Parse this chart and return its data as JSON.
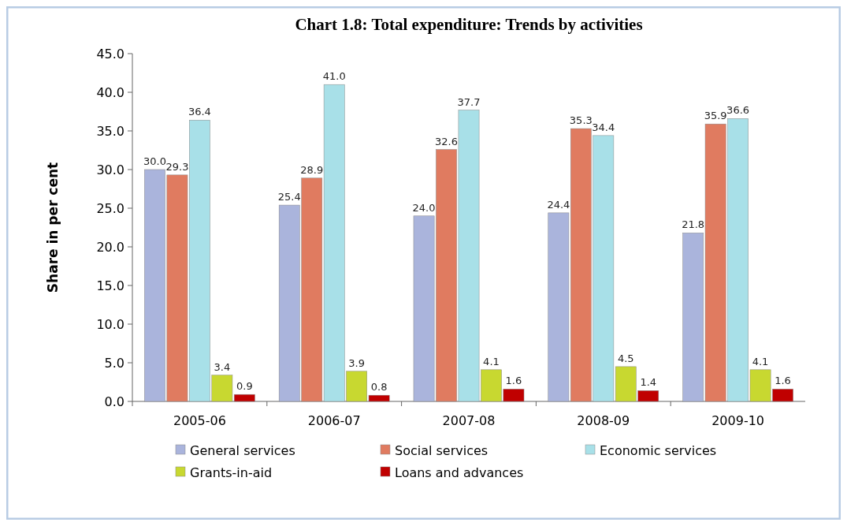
{
  "chart_data": {
    "type": "bar",
    "title": "Chart 1.8: Total expenditure: Trends by activities",
    "ylabel": "Share in per cent",
    "categories": [
      "2005-06",
      "2006-07",
      "2007-08",
      "2008-09",
      "2009-10"
    ],
    "series": [
      {
        "name": "General services",
        "color": "#aab4dc",
        "values": [
          30.0,
          25.4,
          24.0,
          24.4,
          21.8
        ],
        "value_labels": [
          "30.0",
          "25.4",
          "24.0",
          "24.4",
          "21.8"
        ]
      },
      {
        "name": "Social services",
        "color": "#e07b60",
        "values": [
          29.3,
          28.9,
          32.6,
          35.3,
          35.9
        ],
        "value_labels": [
          "29.3",
          "28.9",
          "32.6",
          "35.3",
          "35.9"
        ]
      },
      {
        "name": "Economic services",
        "color": "#a8e0e8",
        "values": [
          36.4,
          41.0,
          37.7,
          34.4,
          36.6
        ],
        "value_labels": [
          "36.4",
          "41.0",
          "37.7",
          "34.4",
          "36.6"
        ]
      },
      {
        "name": "Grants-in-aid",
        "color": "#c8d830",
        "values": [
          3.4,
          3.9,
          4.1,
          4.5,
          4.1
        ],
        "value_labels": [
          "3.4",
          "3.9",
          "4.1",
          "4.5",
          "4.1"
        ]
      },
      {
        "name": "Loans and advances",
        "color": "#c00000",
        "values": [
          0.9,
          0.8,
          1.6,
          1.4,
          1.6
        ],
        "value_labels": [
          "0.9",
          "0.8",
          "1.6",
          "1.4",
          "1.6"
        ]
      }
    ],
    "ylim": [
      0,
      45
    ],
    "yticks": [
      {
        "value": 0,
        "label": "0.0"
      },
      {
        "value": 5,
        "label": "5.0"
      },
      {
        "value": 10,
        "label": "10.0"
      },
      {
        "value": 15,
        "label": "15.0"
      },
      {
        "value": 20,
        "label": "20.0"
      },
      {
        "value": 25,
        "label": "25.0"
      },
      {
        "value": 30,
        "label": "30.0"
      },
      {
        "value": 35,
        "label": "35.0"
      },
      {
        "value": 40,
        "label": "40.0"
      },
      {
        "value": 45,
        "label": "45.0"
      }
    ],
    "legend": "bottom"
  }
}
